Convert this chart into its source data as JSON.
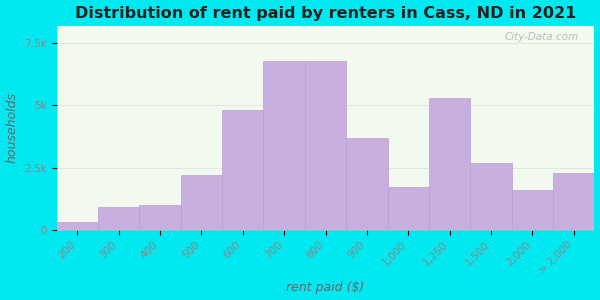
{
  "title": "Distribution of rent paid by renters in Cass, ND in 2021",
  "xlabel": "rent paid ($)",
  "ylabel": "households",
  "categories": [
    "200",
    "300",
    "400",
    "500",
    "600",
    "700",
    "800",
    "900",
    "1,000",
    "1,250",
    "1,500",
    "2,000",
    "> 2,000"
  ],
  "values": [
    300,
    900,
    1000,
    2200,
    4800,
    6800,
    6800,
    3700,
    1700,
    5300,
    2700,
    1600,
    2300
  ],
  "bar_color": "#c9aee0",
  "bar_edge_color": "#b89ecf",
  "ylim": [
    0,
    8200
  ],
  "yticks": [
    0,
    2500,
    5000,
    7500
  ],
  "ytick_labels": [
    "0",
    "2.5k",
    "5k",
    "7.5k"
  ],
  "bg_outer": "#00e8f0",
  "bg_plot": "#f2f9ee",
  "title_fontsize": 11.5,
  "axis_label_fontsize": 9,
  "tick_fontsize": 7.5,
  "watermark_text": "City-Data.com"
}
